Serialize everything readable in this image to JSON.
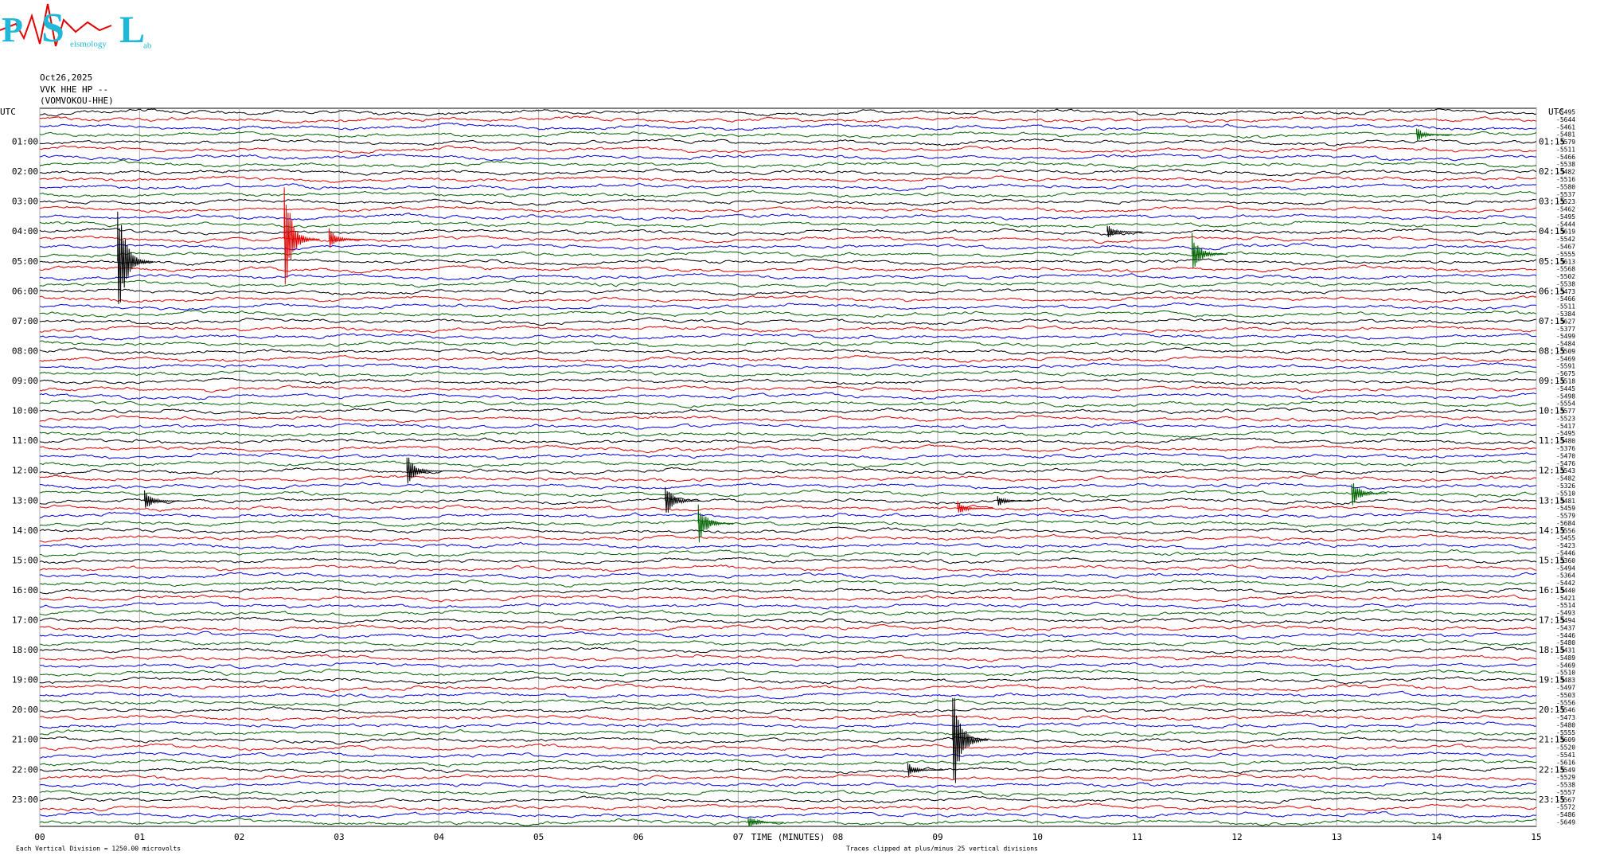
{
  "chart_data": {
    "type": "helicorder",
    "logo": {
      "letters": [
        "P",
        "S",
        "L"
      ],
      "fragments": [
        "eismology",
        "ab"
      ]
    },
    "date": "Oct26,2025",
    "station": "VVK HHE HP --",
    "station_name": "(VOMVOKOU-HHE)",
    "utc_label": "UTC",
    "left_labels": [
      "01:00",
      "02:00",
      "03:00",
      "04:00",
      "05:00",
      "06:00",
      "07:00",
      "08:00",
      "09:00",
      "10:00",
      "11:00",
      "12:00",
      "13:00",
      "14:00",
      "15:00",
      "16:00",
      "17:00",
      "18:00",
      "19:00",
      "20:00",
      "21:00",
      "22:00",
      "23:00"
    ],
    "right_labels": [
      "01:15",
      "02:15",
      "03:15",
      "04:15",
      "05:15",
      "06:15",
      "07:15",
      "08:15",
      "09:15",
      "10:15",
      "11:15",
      "12:15",
      "13:15",
      "14:15",
      "15:15",
      "16:15",
      "17:15",
      "18:15",
      "19:15",
      "20:15",
      "21:15",
      "22:15",
      "23:15"
    ],
    "colors": [
      "#000000",
      "#e00000",
      "#0000e0",
      "#006400"
    ],
    "offsets": [
      -5495,
      -5644,
      -5461,
      -5481,
      -5579,
      -5511,
      -5466,
      -5538,
      -5482,
      -5516,
      -5580,
      -5537,
      -5523,
      -5462,
      -5495,
      -5444,
      -5619,
      -5542,
      -5467,
      -5555,
      -5613,
      -5568,
      -5502,
      -5538,
      -5473,
      -5466,
      -5511,
      -5384,
      -5627,
      -5377,
      -5499,
      -5484,
      -5509,
      -5469,
      -5591,
      -5675,
      -5518,
      -5445,
      -5498,
      -5554,
      -5577,
      -5523,
      -5417,
      -5495,
      -5480,
      -5376,
      -5470,
      -5476,
      -5543,
      -5482,
      -5326,
      -5510,
      -5481,
      -5459,
      -5579,
      -5684,
      -5556,
      -5455,
      -5423,
      -5446,
      -5360,
      -5494,
      -5364,
      -5442,
      -5440,
      -5421,
      -5514,
      -5493,
      -5494,
      -5437,
      -5446,
      -5480,
      -5431,
      -5489,
      -5469,
      -5510,
      -5483,
      -5497,
      -5503,
      -5556,
      -5546,
      -5473,
      -5480,
      -5555,
      -5609,
      -5520,
      -5541,
      -5616,
      -5549,
      -5529,
      -5538,
      -5557,
      -5567,
      -5572,
      -5486,
      -5649
    ],
    "xlim": [
      0,
      15
    ],
    "xticks": [
      {
        "value": 0,
        "label": "00"
      },
      {
        "value": 1,
        "label": "01"
      },
      {
        "value": 2,
        "label": "02"
      },
      {
        "value": 3,
        "label": "03"
      },
      {
        "value": 4,
        "label": "04"
      },
      {
        "value": 5,
        "label": "05"
      },
      {
        "value": 6,
        "label": "06"
      },
      {
        "value": 7,
        "label": "07"
      },
      {
        "value": 8,
        "label": "08"
      },
      {
        "value": 9,
        "label": "09"
      },
      {
        "value": 10,
        "label": "10"
      },
      {
        "value": 11,
        "label": "11"
      },
      {
        "value": 12,
        "label": "12"
      },
      {
        "value": 13,
        "label": "13"
      },
      {
        "value": 14,
        "label": "14"
      },
      {
        "value": 15,
        "label": "15"
      }
    ],
    "xlabel": "TIME (MINUTES)",
    "scale_note": "Each Vertical Division = 1250.00 microvolts",
    "clip_note": "Traces clipped at plus/minus 25 vertical divisions",
    "events": [
      {
        "trace": 20,
        "minute": 0.78,
        "amplitude": 9
      },
      {
        "trace": 17,
        "minute": 2.45,
        "amplitude": 8
      },
      {
        "trace": 17,
        "minute": 2.9,
        "amplitude": 1.5
      },
      {
        "trace": 16,
        "minute": 10.7,
        "amplitude": 1
      },
      {
        "trace": 19,
        "minute": 11.55,
        "amplitude": 3
      },
      {
        "trace": 3,
        "minute": 13.8,
        "amplitude": 1
      },
      {
        "trace": 48,
        "minute": 3.68,
        "amplitude": 2.5
      },
      {
        "trace": 52,
        "minute": 1.05,
        "amplitude": 1.5
      },
      {
        "trace": 52,
        "minute": 6.27,
        "amplitude": 2.5
      },
      {
        "trace": 52,
        "minute": 9.6,
        "amplitude": 0.8
      },
      {
        "trace": 53,
        "minute": 9.2,
        "amplitude": 1
      },
      {
        "trace": 51,
        "minute": 13.15,
        "amplitude": 2
      },
      {
        "trace": 55,
        "minute": 6.6,
        "amplitude": 3
      },
      {
        "trace": 84,
        "minute": 9.15,
        "amplitude": 9
      },
      {
        "trace": 88,
        "minute": 8.7,
        "amplitude": 1
      },
      {
        "trace": 95,
        "minute": 7.1,
        "amplitude": 1
      }
    ]
  }
}
